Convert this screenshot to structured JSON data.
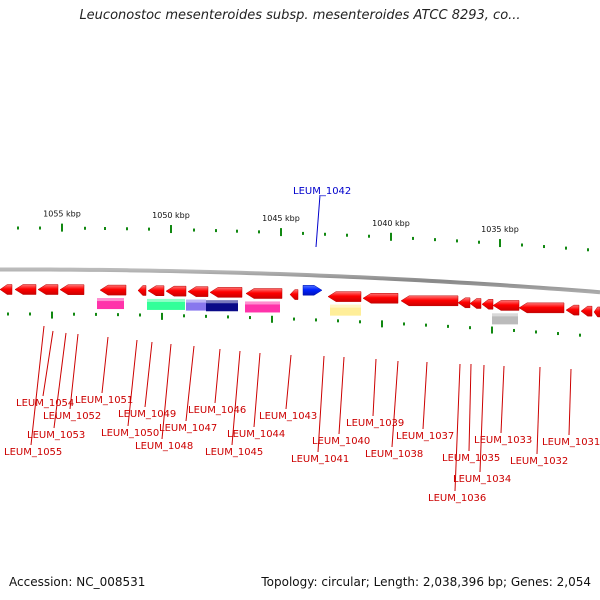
{
  "title": "Leuconostoc mesenteroides subsp. mesenteroides ATCC 8293, co...",
  "footer": {
    "accession": "Accession: NC_008531",
    "summary": "Topology: circular; Length: 2,038,396 bp; Genes: 2,054"
  },
  "axis": {
    "scale_labels": [
      "1055 kbp",
      "1050 kbp",
      "1045 kbp",
      "1040 kbp",
      "1035 kbp"
    ]
  },
  "colors": {
    "forward": "#0022ff",
    "reverse": "#ff0000",
    "backbone": "#999999",
    "tick": "#118811",
    "label_red": "#cc0000",
    "label_blue": "#0000cc"
  },
  "genes": [
    {
      "id": "LEUM_1055",
      "label": "LEUM_1055",
      "strand": "reverse"
    },
    {
      "id": "LEUM_1054",
      "label": "LEUM_1054",
      "strand": "reverse"
    },
    {
      "id": "LEUM_1053",
      "label": "LEUM_1053",
      "strand": "reverse"
    },
    {
      "id": "LEUM_1052",
      "label": "LEUM_1052",
      "strand": "reverse"
    },
    {
      "id": "LEUM_1051",
      "label": "LEUM_1051",
      "strand": "reverse"
    },
    {
      "id": "LEUM_1050",
      "label": "LEUM_1050",
      "strand": "reverse"
    },
    {
      "id": "LEUM_1049",
      "label": "LEUM_1049",
      "strand": "reverse"
    },
    {
      "id": "LEUM_1048",
      "label": "LEUM_1048",
      "strand": "reverse"
    },
    {
      "id": "LEUM_1047",
      "label": "LEUM_1047",
      "strand": "reverse"
    },
    {
      "id": "LEUM_1046",
      "label": "LEUM_1046",
      "strand": "reverse"
    },
    {
      "id": "LEUM_1045",
      "label": "LEUM_1045",
      "strand": "reverse"
    },
    {
      "id": "LEUM_1044",
      "label": "LEUM_1044",
      "strand": "reverse"
    },
    {
      "id": "LEUM_1043",
      "label": "LEUM_1043",
      "strand": "reverse"
    },
    {
      "id": "LEUM_1042",
      "label": "LEUM_1042",
      "strand": "forward"
    },
    {
      "id": "LEUM_1041",
      "label": "LEUM_1041",
      "strand": "reverse"
    },
    {
      "id": "LEUM_1040",
      "label": "LEUM_1040",
      "strand": "reverse"
    },
    {
      "id": "LEUM_1039",
      "label": "LEUM_1039",
      "strand": "reverse"
    },
    {
      "id": "LEUM_1038",
      "label": "LEUM_1038",
      "strand": "reverse"
    },
    {
      "id": "LEUM_1037",
      "label": "LEUM_1037",
      "strand": "reverse"
    },
    {
      "id": "LEUM_1036",
      "label": "LEUM_1036",
      "strand": "reverse"
    },
    {
      "id": "LEUM_1035",
      "label": "LEUM_1035",
      "strand": "reverse"
    },
    {
      "id": "LEUM_1034",
      "label": "LEUM_1034",
      "strand": "reverse"
    },
    {
      "id": "LEUM_1033",
      "label": "LEUM_1033",
      "strand": "reverse"
    },
    {
      "id": "LEUM_1032",
      "label": "LEUM_1032",
      "strand": "reverse"
    },
    {
      "id": "LEUM_1031",
      "label": "LEUM_1031",
      "strand": "reverse"
    }
  ]
}
